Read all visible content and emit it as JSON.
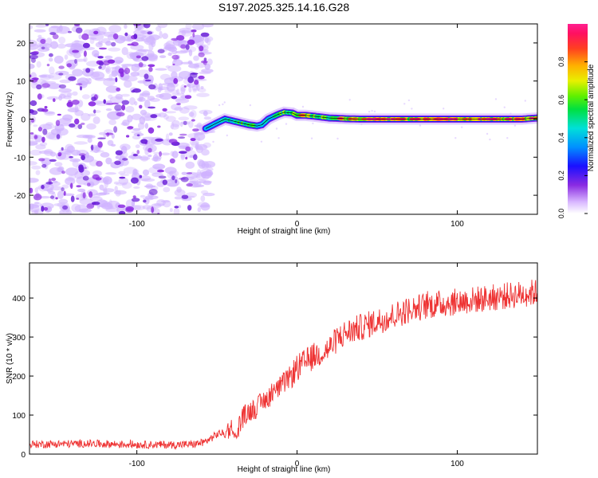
{
  "title": "S197.2025.325.14.16.G28",
  "chart_data": [
    {
      "type": "heatmap",
      "name": "spectrogram",
      "xlabel": "Height of straight line (km)",
      "ylabel": "Frequency (Hz)",
      "xlim": [
        -167,
        150
      ],
      "ylim": [
        -25,
        25
      ],
      "xticks": [
        -100,
        0,
        100
      ],
      "xtick_labels": [
        "-100",
        "0",
        "100"
      ],
      "yticks": [
        -20,
        -10,
        0,
        10,
        20
      ],
      "ytick_labels": [
        "-20",
        "-10",
        "0",
        "10",
        "20"
      ],
      "noise_region_x": [
        -167,
        -57
      ],
      "ridge": {
        "x": [
          -57,
          -50,
          -45,
          -40,
          -35,
          -30,
          -25,
          -22,
          -18,
          -12,
          -8,
          -3,
          0,
          5,
          10,
          20,
          30,
          40,
          50,
          60,
          70,
          80,
          90,
          100,
          110,
          120,
          130,
          140,
          150
        ],
        "frequency": [
          -2.5,
          -1.0,
          0.0,
          -0.5,
          -1.0,
          -1.5,
          -1.8,
          -1.5,
          0.0,
          1.2,
          1.8,
          1.6,
          1.0,
          1.0,
          0.8,
          0.3,
          0.1,
          0.0,
          0.0,
          0.0,
          0.0,
          0.0,
          0.0,
          0.0,
          0.0,
          0.0,
          0.0,
          0.0,
          0.3
        ],
        "amplitude": [
          0.35,
          0.45,
          0.6,
          0.55,
          0.65,
          0.8,
          0.6,
          0.45,
          0.55,
          0.65,
          0.8,
          0.75,
          0.7,
          0.85,
          0.8,
          0.75,
          0.85,
          0.9,
          0.95,
          0.9,
          0.85,
          0.95,
          0.95,
          0.9,
          0.85,
          0.9,
          0.85,
          0.95,
          0.85
        ]
      },
      "colorbar": {
        "label": "Normalized spectral amplitude",
        "range": [
          0,
          1
        ],
        "ticks": [
          0.0,
          0.2,
          0.4,
          0.6,
          0.8
        ],
        "tick_labels": [
          "0.0",
          "0.2",
          "0.4",
          "0.6",
          "0.8"
        ]
      }
    },
    {
      "type": "line",
      "name": "snr",
      "xlabel": "Height of straight line (km)",
      "ylabel": "SNR (10 * v/v)",
      "xlim": [
        -167,
        150
      ],
      "ylim": [
        0,
        490
      ],
      "xticks": [
        -100,
        0,
        100
      ],
      "xtick_labels": [
        "-100",
        "0",
        "100"
      ],
      "yticks": [
        0,
        100,
        200,
        300,
        400
      ],
      "ytick_labels": [
        "0",
        "100",
        "200",
        "300",
        "400"
      ],
      "series": [
        {
          "name": "SNR",
          "color": "#ee3333",
          "x": [
            -167,
            -150,
            -130,
            -110,
            -90,
            -75,
            -65,
            -58,
            -52,
            -48,
            -45,
            -42,
            -40,
            -38,
            -35,
            -30,
            -25,
            -20,
            -15,
            -10,
            -5,
            0,
            5,
            10,
            15,
            20,
            25,
            30,
            40,
            50,
            60,
            70,
            80,
            90,
            100,
            110,
            120,
            130,
            140,
            150
          ],
          "values": [
            25,
            26,
            27,
            25,
            24,
            24,
            25,
            30,
            45,
            55,
            50,
            70,
            60,
            40,
            90,
            110,
            120,
            140,
            155,
            175,
            195,
            220,
            235,
            250,
            260,
            270,
            295,
            310,
            325,
            340,
            355,
            370,
            380,
            385,
            390,
            395,
            400,
            405,
            410,
            415
          ]
        }
      ]
    }
  ]
}
